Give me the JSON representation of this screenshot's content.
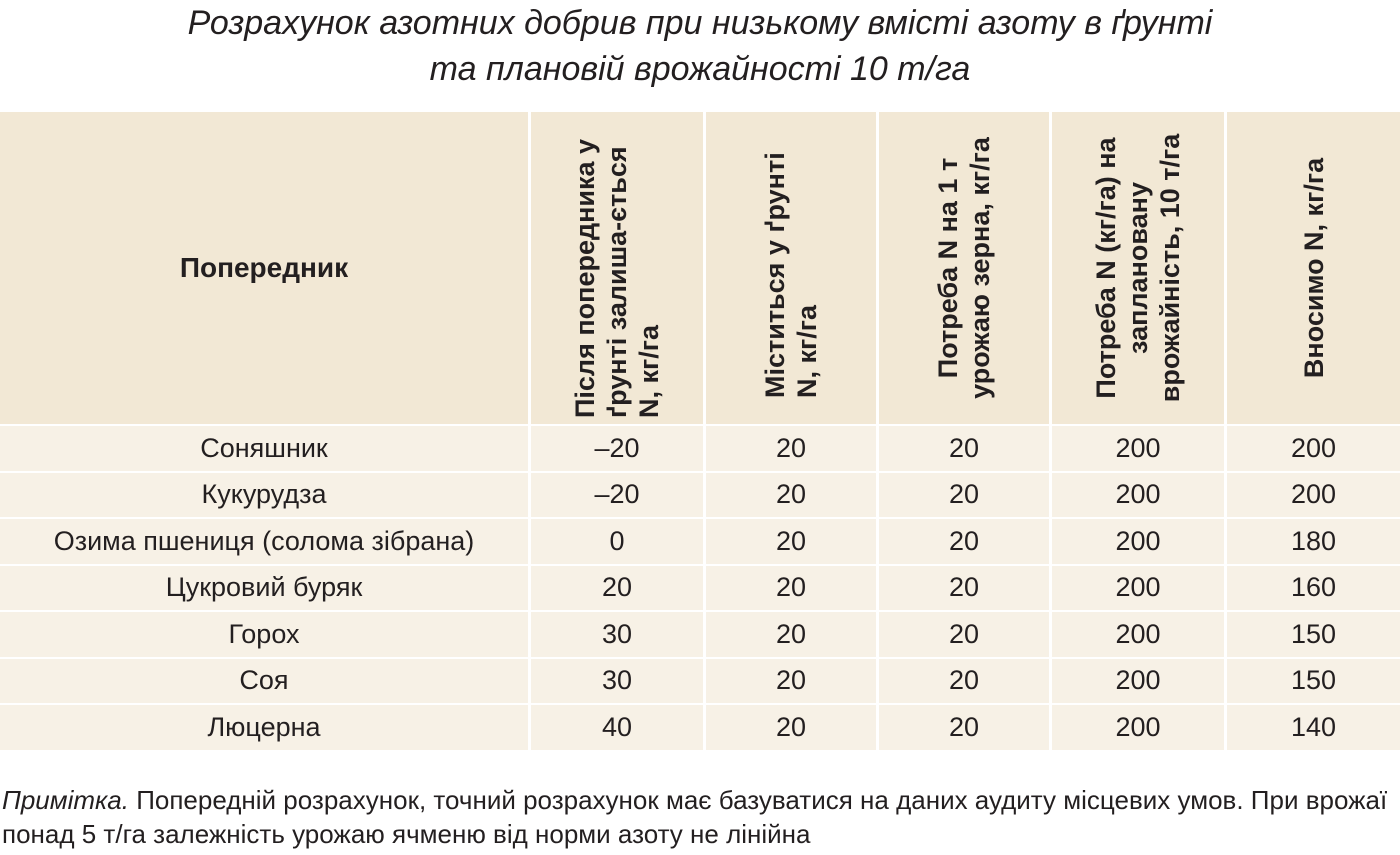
{
  "title": {
    "line1": "Розрахунок азотних добрив при низькому вмісті азоту в ґрунті",
    "line2": "та плановій врожайності 10 т/га"
  },
  "table": {
    "columns": [
      "Попередник",
      "Після попередника у ґрунті залиша-ється N, кг/га",
      "Міститься у ґрунті N, кг/га",
      "Потреба N на 1 т урожаю зерна, кг/га",
      "Потреба N (кг/га) на заплановану врожайність, 10 т/га",
      "Вносимо N, кг/га"
    ],
    "rows": [
      [
        "Соняшник",
        "–20",
        "20",
        "20",
        "200",
        "200"
      ],
      [
        "Кукурудза",
        "–20",
        "20",
        "20",
        "200",
        "200"
      ],
      [
        "Озима пшениця (солома зібрана)",
        "0",
        "20",
        "20",
        "200",
        "180"
      ],
      [
        "Цукровий буряк",
        "20",
        "20",
        "20",
        "200",
        "160"
      ],
      [
        "Горох",
        "30",
        "20",
        "20",
        "200",
        "150"
      ],
      [
        "Соя",
        "30",
        "20",
        "20",
        "200",
        "150"
      ],
      [
        "Люцерна",
        "40",
        "20",
        "20",
        "200",
        "140"
      ]
    ]
  },
  "note": {
    "label": "Примітка.",
    "text": " Попередній розрахунок, точний розрахунок має базуватися на даних аудиту місцевих умов. При врожаї понад 5 т/га залежність урожаю ячменю від норми азоту не лінійна"
  },
  "colors": {
    "header_bg": "#f2e8d5",
    "row_bg": "#f7f1e6",
    "text": "#231f20"
  }
}
